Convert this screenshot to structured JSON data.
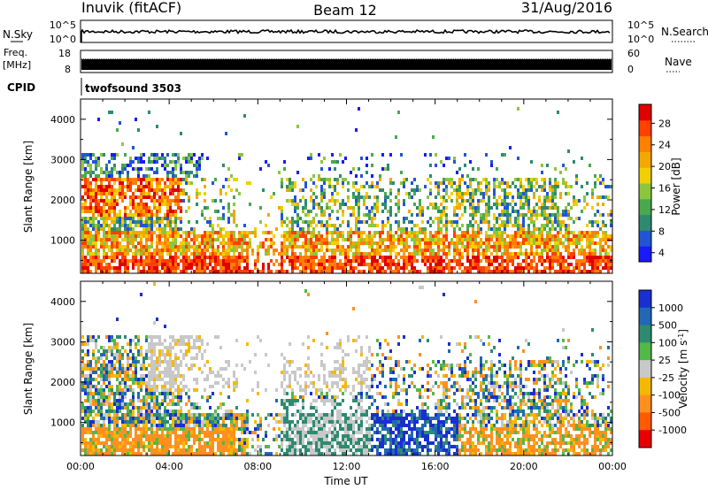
{
  "header": {
    "station": "Inuvik (fitACF)",
    "beam": "Beam 12",
    "date": "31/Aug/2016"
  },
  "status_panels": {
    "nsky_label": "N.Sky",
    "nsky_ticks": [
      "10^5",
      "10^0"
    ],
    "nsearch_label": "N.Search",
    "nsearch_ticks": [
      "10^5",
      "10^0"
    ],
    "freq_label": "Freq.",
    "freq_unit": "[MHz]",
    "freq_ticks": [
      "18",
      "8"
    ],
    "nave_label": "Nave",
    "nave_ticks": [
      "60",
      "0"
    ],
    "cpid_label": "CPID",
    "cpid_value": "twofsound 3503"
  },
  "chart_data": [
    {
      "type": "heatmap",
      "parameter": "Power",
      "xlabel": "",
      "ylabel": "Slant Range [km]",
      "colorbar_label": "Power [dB]",
      "y_ticks": [
        "4000",
        "3000",
        "2000",
        "1000"
      ],
      "x_ticks": [],
      "colorbar_ticks": [
        "28",
        "24",
        "20",
        "16",
        "12",
        "8",
        "4"
      ],
      "colors": [
        "#1a1aff",
        "#2255d6",
        "#2e8b6f",
        "#4aa84f",
        "#8cc63f",
        "#f0d000",
        "#f5a800",
        "#ff7f00",
        "#ff4000",
        "#e00000"
      ],
      "ylim": [
        180,
        4500
      ],
      "xlim_hours": [
        0,
        24
      ]
    },
    {
      "type": "heatmap",
      "parameter": "Velocity",
      "xlabel": "Time UT",
      "ylabel": "Slant Range [km]",
      "colorbar_label": "Velocity [m s^-1]",
      "y_ticks": [
        "4000",
        "3000",
        "2000",
        "1000"
      ],
      "x_ticks": [
        "00:00",
        "04:00",
        "08:00",
        "12:00",
        "16:00",
        "20:00",
        "00:00"
      ],
      "colorbar_ticks": [
        "1000",
        "500",
        "100",
        "25",
        "-25",
        "-100",
        "-500",
        "-1000"
      ],
      "colors": [
        "#1a2fd0",
        "#2268b4",
        "#2e8b6f",
        "#52b848",
        "#c8c8c8",
        "#f5b800",
        "#ff9020",
        "#ff5a00",
        "#e80000"
      ],
      "ylim": [
        180,
        4500
      ],
      "xlim_hours": [
        0,
        24
      ]
    }
  ]
}
